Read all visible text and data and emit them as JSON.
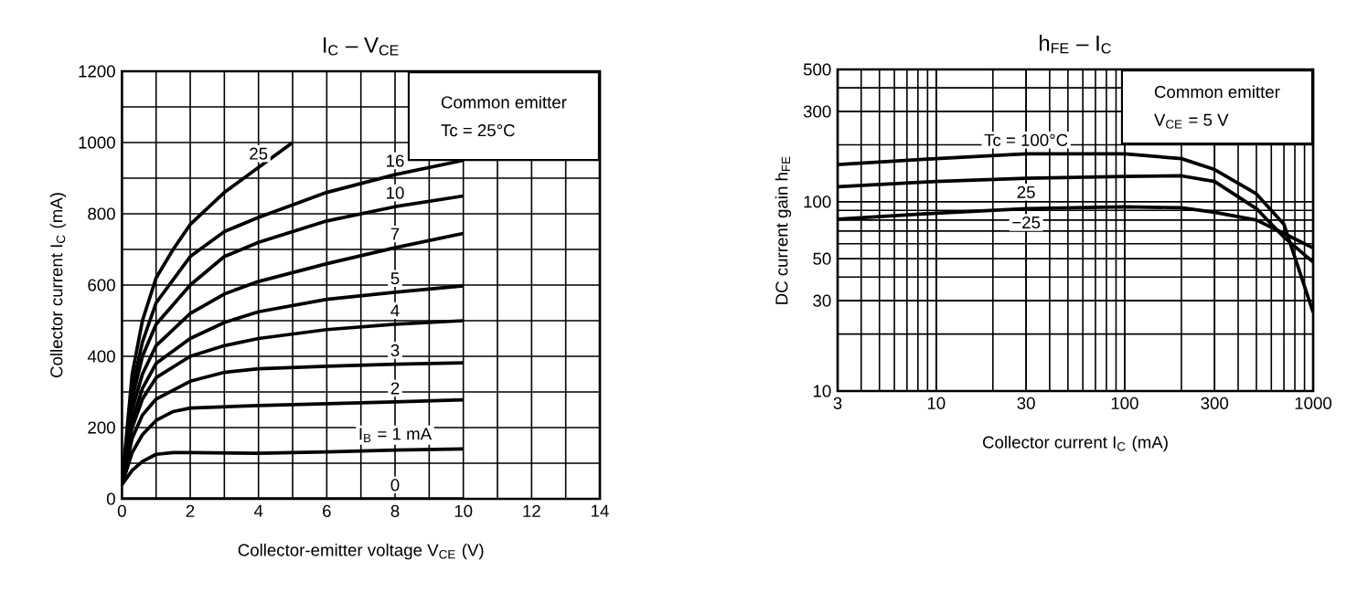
{
  "chart_data": [
    {
      "type": "line",
      "title": "I$_{C}$ – V$_{CE}$",
      "xlabel": "Collector-emitter voltage  V$_{CE}$  (V)",
      "ylabel": "Collector current  I$_{C}$  (mA)",
      "annotations": [
        "Common emitter",
        "Tc = 25°C"
      ],
      "xlim": [
        0,
        14
      ],
      "xticks": [
        0,
        2,
        4,
        6,
        8,
        10,
        12,
        14
      ],
      "ylim": [
        0,
        1200
      ],
      "yticks": [
        0,
        200,
        400,
        600,
        800,
        1000,
        1200
      ],
      "grid": true,
      "legend": false,
      "series": [
        {
          "name": "25",
          "color": "#000000",
          "x": [
            0,
            0.3,
            0.6,
            1,
            1.5,
            2,
            3,
            4,
            5
          ],
          "values": [
            40,
            350,
            500,
            620,
            700,
            770,
            860,
            930,
            1000
          ]
        },
        {
          "name": "16",
          "color": "#000000",
          "x": [
            0,
            0.3,
            0.6,
            1,
            2,
            3,
            4,
            6,
            8,
            10
          ],
          "values": [
            40,
            310,
            440,
            550,
            680,
            750,
            790,
            860,
            910,
            950
          ]
        },
        {
          "name": "10",
          "color": "#000000",
          "x": [
            0,
            0.3,
            0.6,
            1,
            2,
            3,
            4,
            6,
            8,
            10
          ],
          "values": [
            40,
            280,
            400,
            490,
            600,
            680,
            720,
            780,
            820,
            850
          ]
        },
        {
          "name": "7",
          "color": "#000000",
          "x": [
            0,
            0.3,
            0.6,
            1,
            2,
            3,
            4,
            6,
            8,
            10
          ],
          "values": [
            40,
            250,
            350,
            430,
            520,
            575,
            610,
            660,
            705,
            745
          ]
        },
        {
          "name": "5",
          "color": "#000000",
          "x": [
            0,
            0.3,
            0.6,
            1,
            2,
            3,
            4,
            6,
            8,
            10
          ],
          "values": [
            40,
            220,
            310,
            380,
            450,
            495,
            525,
            560,
            580,
            598
          ]
        },
        {
          "name": "4",
          "color": "#000000",
          "x": [
            0,
            0.3,
            0.6,
            1,
            2,
            3,
            4,
            6,
            8,
            10
          ],
          "values": [
            40,
            200,
            280,
            340,
            400,
            430,
            450,
            475,
            490,
            500
          ]
        },
        {
          "name": "3",
          "color": "#000000",
          "x": [
            0,
            0.3,
            0.6,
            1,
            2,
            3,
            4,
            6,
            8,
            10
          ],
          "values": [
            40,
            170,
            235,
            280,
            330,
            355,
            365,
            372,
            378,
            382
          ]
        },
        {
          "name": "2",
          "color": "#000000",
          "x": [
            0,
            0.3,
            0.6,
            1,
            1.5,
            2,
            4,
            6,
            8,
            10
          ],
          "values": [
            40,
            130,
            180,
            220,
            245,
            255,
            262,
            267,
            272,
            278
          ]
        },
        {
          "name": "I$_{B}$ = 1 mA",
          "color": "#000000",
          "x": [
            0,
            0.3,
            0.6,
            1,
            1.5,
            2,
            4,
            6,
            8,
            10
          ],
          "values": [
            40,
            80,
            105,
            125,
            130,
            130,
            128,
            132,
            137,
            140
          ]
        },
        {
          "name": "0",
          "color": "#000000",
          "x": [
            0,
            8,
            10
          ],
          "values": [
            0,
            0,
            0
          ]
        }
      ]
    },
    {
      "type": "line",
      "title": "h$_{FE}$ – I$_{C}$",
      "xlabel": "Collector current  I$_{C}$  (mA)",
      "ylabel": "DC current gain  h$_{FE}$",
      "annotations": [
        "Common emitter",
        "V$_{CE}$ = 5 V"
      ],
      "log": "xy",
      "xlim": [
        3,
        1000
      ],
      "xticks": [
        3,
        10,
        30,
        100,
        300,
        1000
      ],
      "ylim": [
        10,
        500
      ],
      "yticks": [
        10,
        30,
        50,
        100,
        300,
        500
      ],
      "grid": true,
      "legend": false,
      "series": [
        {
          "name": "Tc = 100°C",
          "color": "#000000",
          "x": [
            3,
            10,
            30,
            100,
            200,
            300,
            500,
            700,
            1000
          ],
          "values": [
            157,
            169,
            179,
            179,
            169,
            148,
            110,
            76,
            26
          ]
        },
        {
          "name": "25",
          "color": "#000000",
          "x": [
            3,
            10,
            30,
            100,
            200,
            300,
            500,
            700,
            1000
          ],
          "values": [
            120,
            128,
            133,
            136,
            137,
            128,
            92,
            65,
            48
          ]
        },
        {
          "name": "−25",
          "color": "#000000",
          "x": [
            3,
            10,
            30,
            100,
            200,
            300,
            500,
            700,
            1000
          ],
          "values": [
            81,
            87,
            92,
            94,
            93,
            88,
            80,
            68,
            57
          ]
        }
      ]
    }
  ]
}
